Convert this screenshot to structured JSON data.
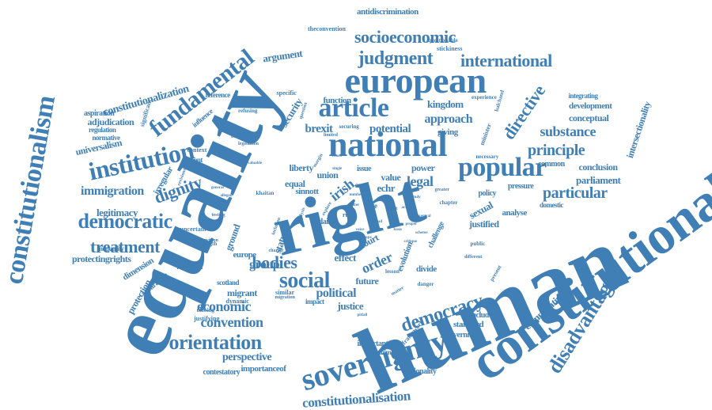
{
  "colors": {
    "word": "#3f7fb5",
    "background": "#ffffff"
  },
  "words": [
    "human",
    "equality",
    "right",
    "constitutional",
    "national",
    "european",
    "sovereignty",
    "article",
    "popular",
    "institution",
    "fundamental",
    "democratic",
    "social",
    "orientation",
    "constitutionalism",
    "disadvantage",
    "democracy",
    "judgment",
    "socioeconomic",
    "international",
    "directive",
    "principle",
    "substance",
    "particular",
    "dignity",
    "treatment",
    "convention",
    "economic",
    "bodies",
    "immigration",
    "legitimacy",
    "constitutionalisation",
    "comparative",
    "perspective",
    "argument",
    "approach",
    "kingdom",
    "brexit",
    "potential",
    "legal",
    "irish",
    "order",
    "political",
    "justice",
    "group",
    "protectingrights",
    "constitutionalization",
    "adjudication",
    "universalism",
    "intersectionality",
    "parliament",
    "conclusion",
    "sexual",
    "justified",
    "analyse",
    "status",
    "ground",
    "effect",
    "court",
    "echr",
    "value",
    "union",
    "liberty",
    "equal",
    "sinnott",
    "future",
    "evolution",
    "migrant",
    "scotland",
    "dimension",
    "protection",
    "separation",
    "inequality",
    "irregular",
    "contestatory",
    "importanceof",
    "rationality",
    "government",
    "standard",
    "conclude",
    "important",
    "minimum",
    "framework",
    "impact",
    "security",
    "function",
    "giving",
    "development",
    "experience",
    "integrating",
    "conceptual",
    "common",
    "pressure",
    "policy",
    "domestic",
    "aspiration",
    "significant",
    "regulation",
    "normative",
    "reference",
    "influence",
    "refusing",
    "specific",
    "question",
    "securing",
    "minister",
    "balchand",
    "limited",
    "bridging",
    "legislation",
    "current",
    "context",
    "revisions",
    "uncertain",
    "provision",
    "testing",
    "strength",
    "foundation",
    "justifying",
    "missing",
    "dynamic",
    "europe",
    "charter",
    "similar",
    "matter",
    "danger",
    "lesson",
    "divide",
    "challenge",
    "case",
    "claim",
    "issue",
    "power",
    "state",
    "rule",
    "stickiness",
    "questionable",
    "antidiscrimination",
    "theconvention",
    "different",
    "public",
    "present",
    "necessary",
    "chapter",
    "explore",
    "margin",
    "general",
    "alleged",
    "khaitan",
    "analysis",
    "greater",
    "inclusion",
    "voice",
    "pitfall",
    "central",
    "better",
    "single",
    "study",
    "broad",
    "valuable",
    "strong",
    "number",
    "proper",
    "action",
    "space",
    "basis",
    "reach",
    "detail",
    "scheme",
    "migration",
    "scope",
    "critique"
  ]
}
